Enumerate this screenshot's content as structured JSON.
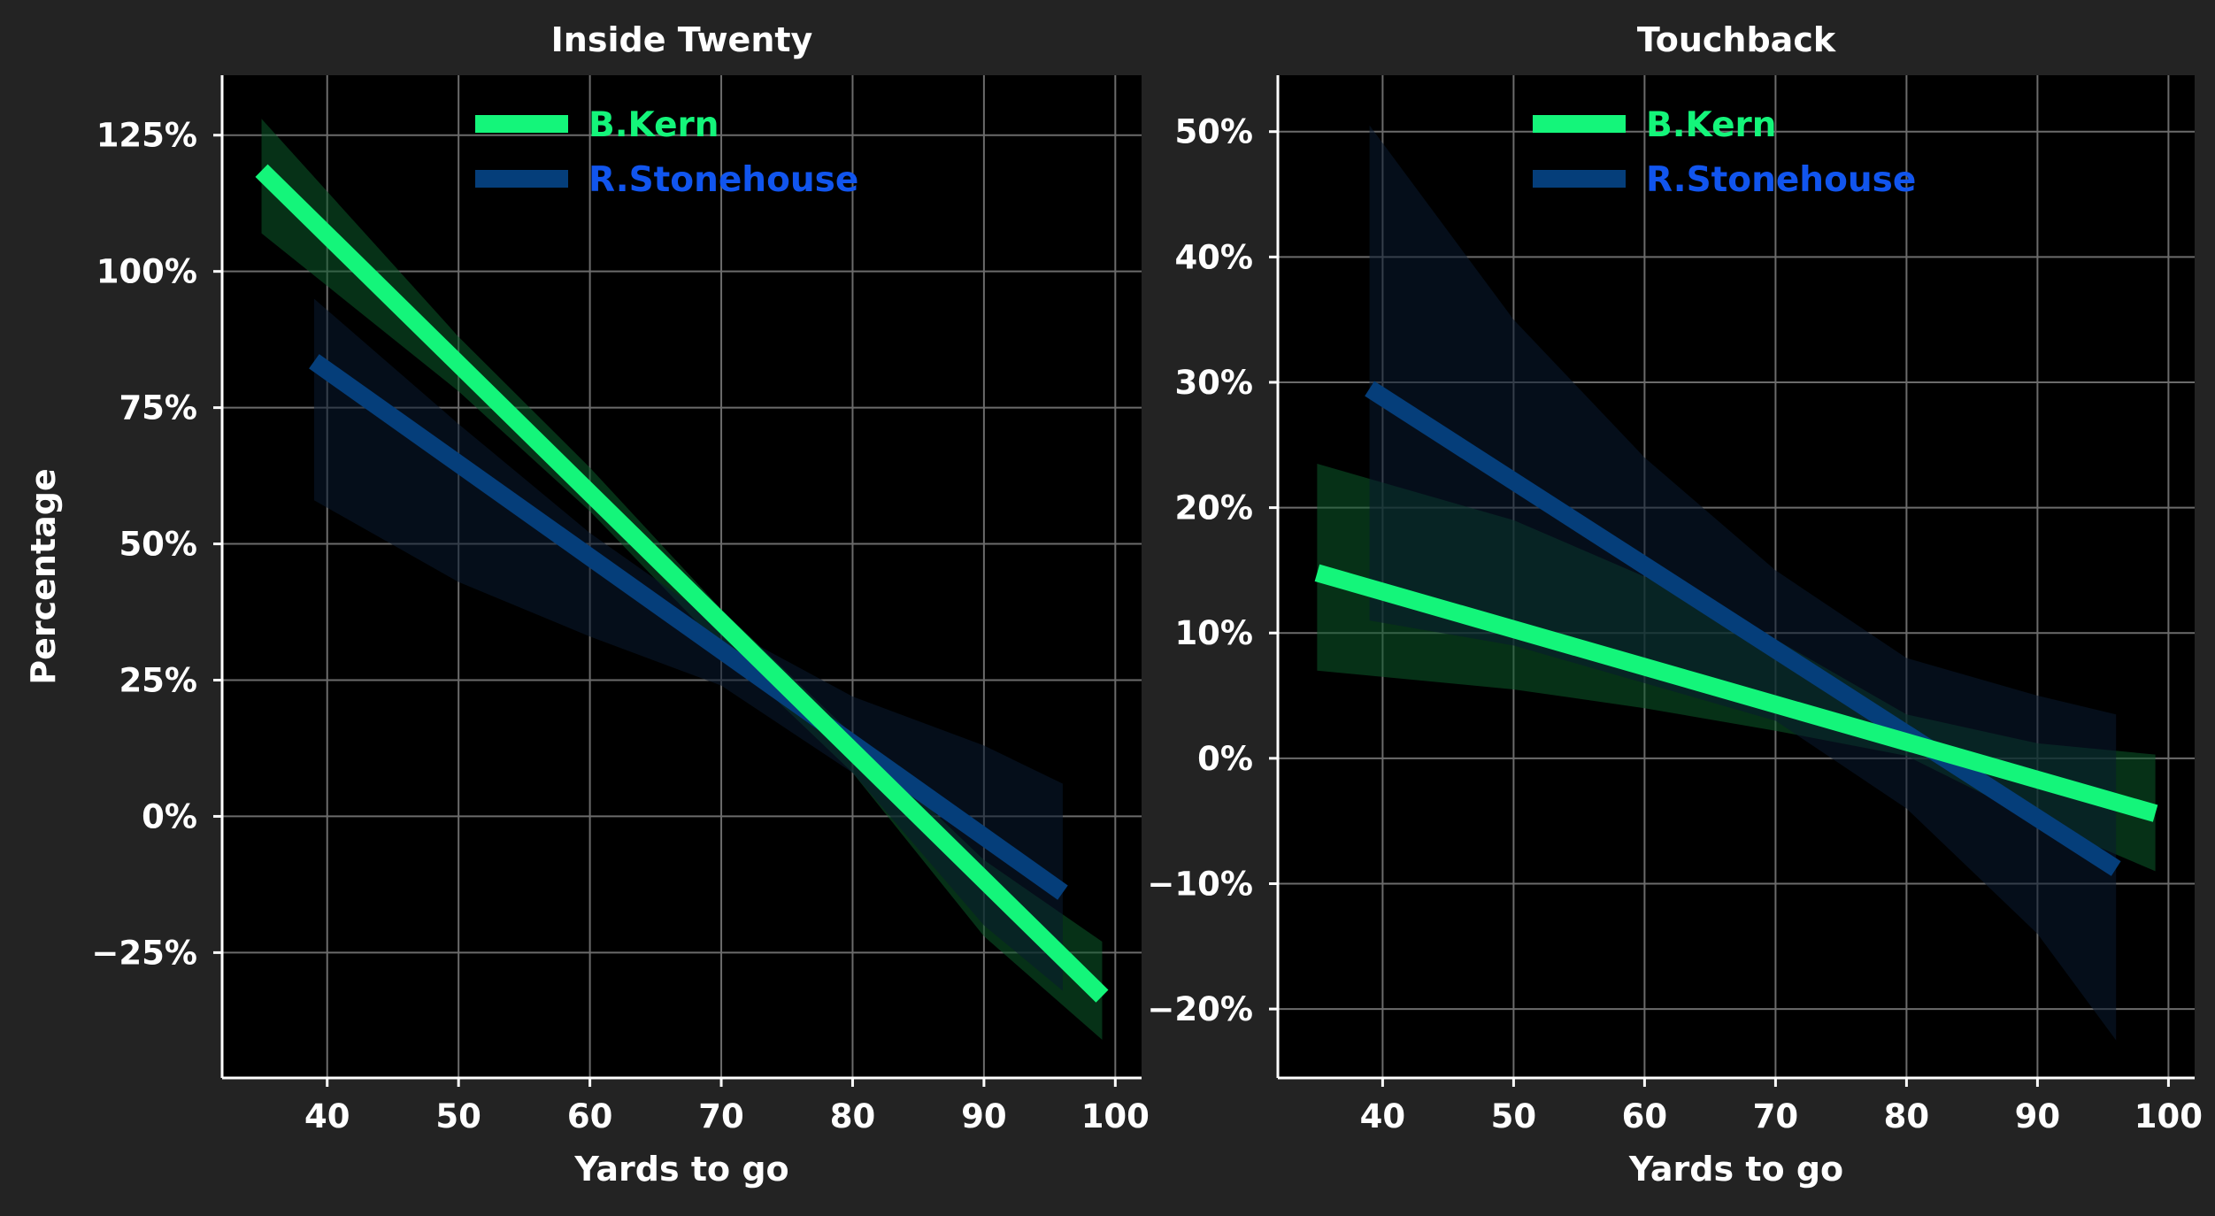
{
  "chart_data": [
    {
      "type": "line",
      "panel": "left",
      "title": "Inside Twenty",
      "xlabel": "Yards to go",
      "ylabel": "Percentage",
      "xlim": [
        32,
        102
      ],
      "ylim": [
        -48,
        136
      ],
      "xticks": [
        40,
        50,
        60,
        70,
        80,
        90,
        100
      ],
      "yticks": [
        -25,
        0,
        25,
        50,
        75,
        100,
        125
      ],
      "xtick_labels": [
        "40",
        "50",
        "60",
        "70",
        "80",
        "90",
        "100"
      ],
      "ytick_labels": [
        "−25%",
        "0%",
        "25%",
        "50%",
        "75%",
        "100%",
        "125%"
      ],
      "grid": true,
      "legend_position": "upper-center",
      "series": [
        {
          "name": "B.Kern",
          "color": "#14f57a",
          "line_color": "#14f57a",
          "band_color": "#0b5a2a",
          "x": [
            35,
            99
          ],
          "y": [
            118.5,
            -33
          ],
          "band_x": [
            35,
            50,
            60,
            70,
            80,
            90,
            99
          ],
          "band_upper": [
            128,
            88,
            64,
            38,
            15,
            -8,
            -23
          ],
          "band_lower": [
            107,
            78,
            56,
            31,
            8,
            -22,
            -41
          ]
        },
        {
          "name": "R.Stonehouse",
          "color": "#1155ee",
          "line_color": "#053e7a",
          "band_color": "#0a1a30",
          "x": [
            39,
            96
          ],
          "y": [
            83.5,
            -14
          ],
          "band_x": [
            39,
            50,
            60,
            70,
            80,
            90,
            96
          ],
          "band_upper": [
            95,
            72,
            52,
            35,
            22,
            13,
            6
          ],
          "band_lower": [
            58,
            43,
            33,
            24,
            8,
            -20,
            -32
          ]
        }
      ]
    },
    {
      "type": "line",
      "panel": "right",
      "title": "Touchback",
      "xlabel": "Yards to go",
      "ylabel": "",
      "xlim": [
        32,
        102
      ],
      "ylim": [
        -25.5,
        54.5
      ],
      "xticks": [
        40,
        50,
        60,
        70,
        80,
        90,
        100
      ],
      "yticks": [
        -20,
        -10,
        0,
        10,
        20,
        30,
        40,
        50
      ],
      "xtick_labels": [
        "40",
        "50",
        "60",
        "70",
        "80",
        "90",
        "100"
      ],
      "ytick_labels": [
        "−20%",
        "−10%",
        "0%",
        "10%",
        "20%",
        "30%",
        "40%",
        "50%"
      ],
      "grid": true,
      "legend_position": "upper-center",
      "series": [
        {
          "name": "B.Kern",
          "color": "#14f57a",
          "line_color": "#14f57a",
          "band_color": "#0b5a2a",
          "x": [
            35,
            99
          ],
          "y": [
            14.8,
            -4.4
          ],
          "band_x": [
            35,
            50,
            60,
            70,
            80,
            90,
            99
          ],
          "band_upper": [
            23.5,
            19,
            14.5,
            9.5,
            3.5,
            1.2,
            0.3
          ],
          "band_lower": [
            7,
            5.5,
            4,
            2.2,
            0.2,
            -5,
            -9
          ]
        },
        {
          "name": "R.Stonehouse",
          "color": "#1155ee",
          "line_color": "#053e7a",
          "band_color": "#0a1a30",
          "x": [
            39,
            96
          ],
          "y": [
            29.5,
            -8.8
          ],
          "band_x": [
            39,
            50,
            60,
            70,
            80,
            90,
            96
          ],
          "band_upper": [
            50.5,
            35,
            24,
            15,
            8,
            5,
            3.5
          ],
          "band_lower": [
            11,
            9,
            6,
            3,
            -4,
            -14,
            -22.5
          ]
        }
      ]
    }
  ],
  "style": {
    "page_background": "#232323",
    "plot_background": "#000000",
    "grid_color": "#6b6b6b",
    "axis_color": "#ffffff",
    "text_color": "#ffffff"
  }
}
